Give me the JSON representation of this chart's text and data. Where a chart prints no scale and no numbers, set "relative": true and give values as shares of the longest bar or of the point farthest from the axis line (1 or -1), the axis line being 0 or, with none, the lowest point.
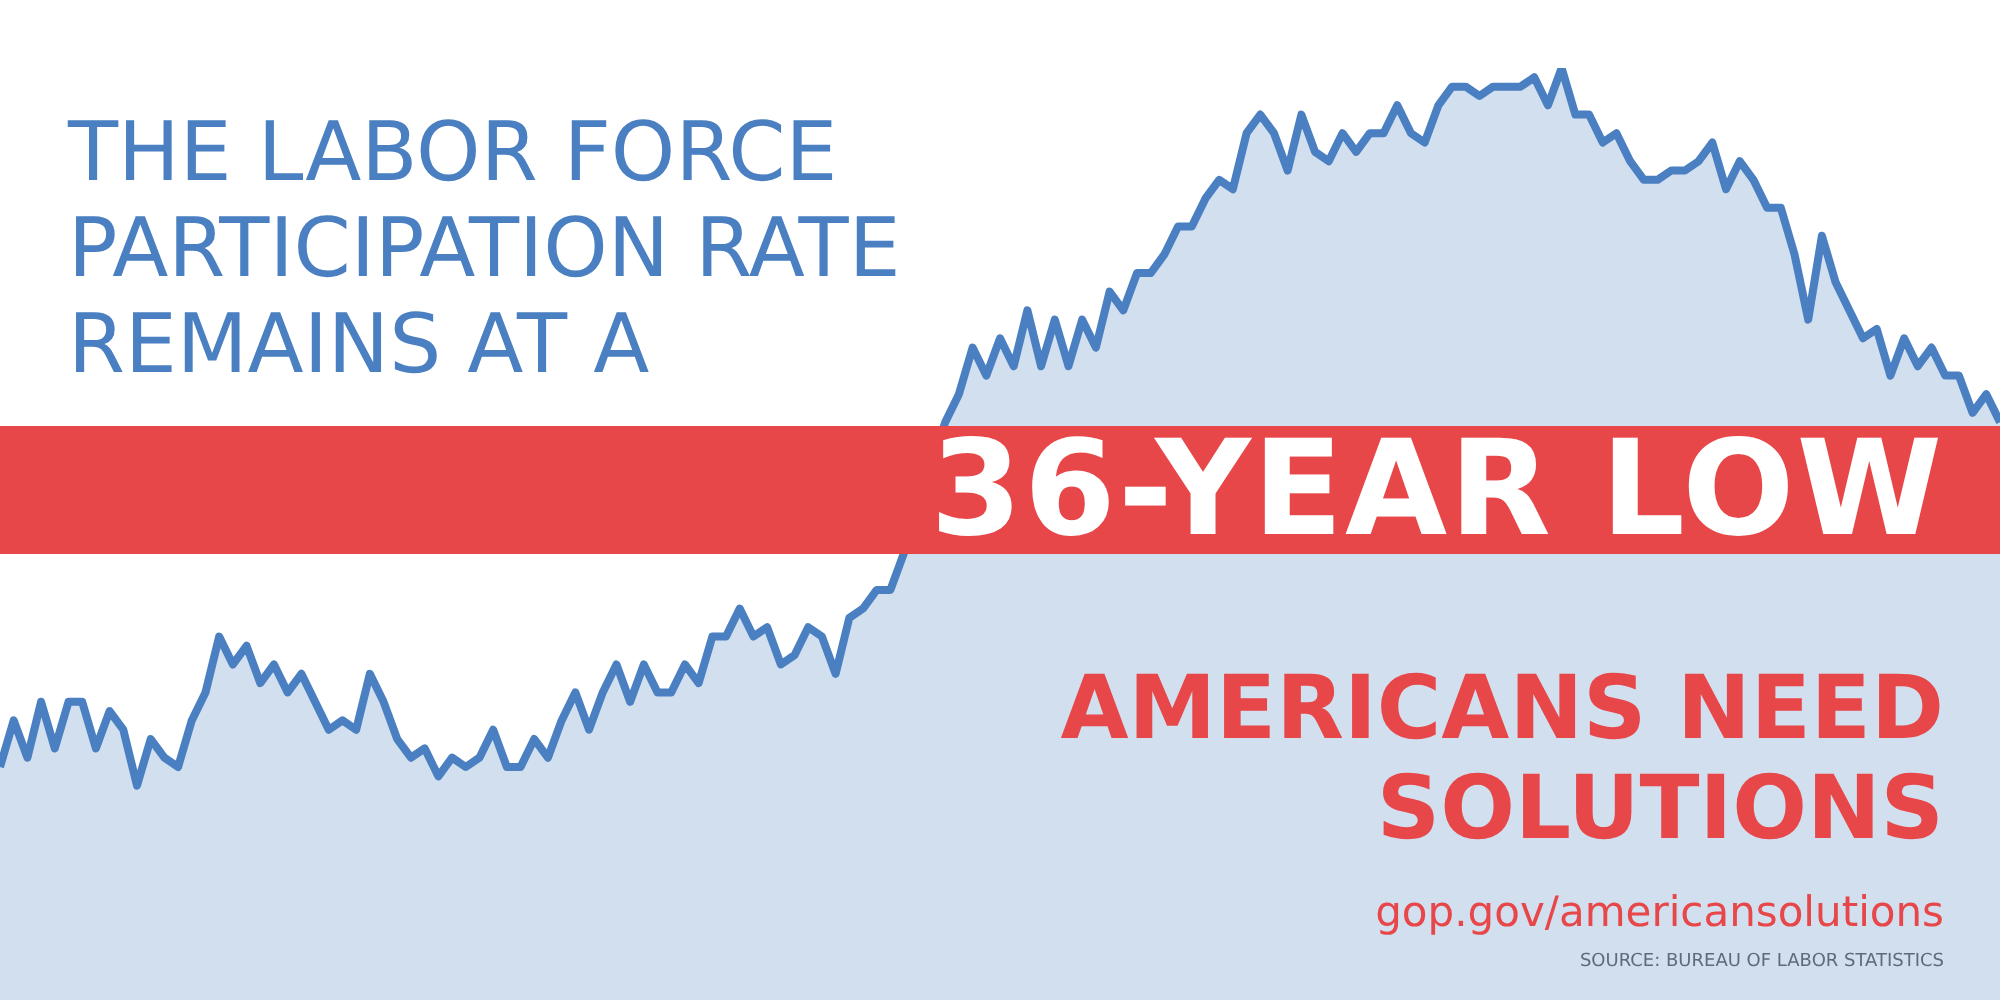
{
  "chart_data": {
    "type": "area",
    "relative": true,
    "title": "THE LABOR FORCE PARTICIPATION RATE REMAINS AT A",
    "subtitle": "36-YEAR LOW",
    "annotations": [
      "AMERICANS NEED SOLUTIONS",
      "gop.gov/americansolutions",
      "SOURCE: BUREAU OF LABOR STATISTICS"
    ],
    "categories": [
      null,
      null,
      null,
      null,
      null,
      null,
      null,
      null,
      null,
      null,
      null,
      null,
      null,
      null,
      null,
      null,
      null,
      null,
      null,
      null,
      null,
      null,
      null,
      null,
      null,
      null,
      null,
      null,
      null,
      null,
      null,
      null,
      null,
      null,
      null,
      null,
      null,
      null,
      null,
      null,
      null,
      null,
      null,
      null,
      null,
      null,
      null,
      null,
      null,
      null,
      null,
      null,
      null,
      null,
      null,
      null,
      null,
      null,
      null,
      null,
      null,
      null,
      null,
      null,
      null,
      null,
      null,
      null,
      null,
      null,
      null,
      null,
      null,
      null,
      null,
      null,
      null,
      null,
      null,
      null,
      null,
      null,
      null,
      null,
      null,
      null,
      null,
      null,
      null,
      null,
      null,
      null,
      null,
      null,
      null,
      null,
      null,
      null,
      null,
      null,
      null,
      null,
      null,
      null,
      null,
      null,
      null,
      null,
      null,
      null,
      null,
      null,
      null,
      null,
      null,
      null,
      null,
      null,
      null,
      null,
      null,
      null,
      null,
      null,
      null,
      null,
      null,
      null,
      null,
      null,
      null,
      null,
      null,
      null,
      null,
      null,
      null,
      null,
      null,
      null,
      null,
      null,
      null,
      null,
      null,
      null,
      null
    ],
    "series": [
      {
        "color": "#4a7fc1",
        "values": [
          0.25,
          0.3,
          0.26,
          0.32,
          0.27,
          0.32,
          0.32,
          0.27,
          0.31,
          0.29,
          0.23,
          0.28,
          0.26,
          0.25,
          0.3,
          0.33,
          0.39,
          0.36,
          0.38,
          0.34,
          0.36,
          0.33,
          0.35,
          0.32,
          0.29,
          0.3,
          0.29,
          0.35,
          0.32,
          0.28,
          0.26,
          0.27,
          0.24,
          0.26,
          0.25,
          0.26,
          0.29,
          0.25,
          0.25,
          0.28,
          0.26,
          0.3,
          0.33,
          0.29,
          0.33,
          0.36,
          0.32,
          0.36,
          0.33,
          0.33,
          0.36,
          0.34,
          0.39,
          0.39,
          0.42,
          0.39,
          0.4,
          0.36,
          0.37,
          0.4,
          0.39,
          0.35,
          0.41,
          0.42,
          0.44,
          0.44,
          0.48,
          null,
          null,
          0.62,
          0.65,
          0.7,
          0.67,
          0.71,
          0.68,
          0.74,
          0.68,
          0.73,
          0.68,
          0.73,
          0.7,
          0.76,
          0.74,
          0.78,
          0.78,
          0.8,
          0.83,
          0.83,
          0.86,
          0.88,
          0.87,
          0.93,
          0.95,
          0.93,
          0.89,
          0.95,
          0.91,
          0.9,
          0.93,
          0.91,
          0.93,
          0.93,
          0.96,
          0.93,
          0.92,
          0.96,
          0.98,
          0.98,
          0.97,
          0.98,
          0.98,
          0.98,
          0.99,
          0.96,
          1.0,
          0.95,
          0.95,
          0.92,
          0.93,
          0.9,
          0.88,
          0.88,
          0.89,
          0.89,
          0.9,
          0.92,
          0.87,
          0.9,
          0.88,
          0.85,
          0.85,
          0.8,
          0.73,
          0.82,
          0.77,
          0.74,
          0.71,
          0.72,
          0.67,
          0.71,
          0.68,
          0.7,
          0.67,
          0.67,
          0.63,
          0.65,
          0.62
        ]
      }
    ]
  }
}
